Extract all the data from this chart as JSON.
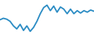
{
  "x": [
    0,
    1,
    2,
    3,
    4,
    5,
    6,
    7,
    8,
    9,
    10,
    11,
    12,
    13,
    14,
    15,
    16,
    17,
    18,
    19,
    20,
    21,
    22,
    23,
    24,
    25,
    26,
    27,
    28
  ],
  "y": [
    5,
    5.5,
    5.2,
    4.5,
    3.0,
    2.0,
    3.5,
    1.5,
    3.0,
    1.2,
    2.5,
    4.5,
    7.0,
    9.0,
    9.8,
    8.0,
    9.5,
    7.5,
    9.2,
    8.5,
    7.0,
    8.5,
    7.0,
    8.0,
    7.2,
    8.0,
    7.5,
    8.2,
    7.8
  ],
  "line_color": "#2b8cc4",
  "line_width": 1.3,
  "background_color": "#ffffff",
  "ylim_min": 0,
  "ylim_max": 11.5
}
